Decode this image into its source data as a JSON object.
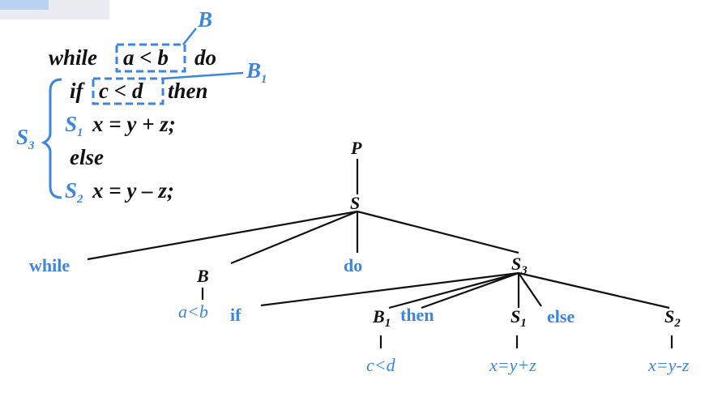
{
  "code": {
    "keyword_while": "while",
    "cond_outer": "a < b",
    "keyword_do": "do",
    "keyword_if": "if",
    "cond_inner": "c < d",
    "keyword_then": "then",
    "s1_label": "S",
    "s1_sub": "1",
    "s1_stmt": "x = y + z;",
    "keyword_else": "else",
    "s2_label": "S",
    "s2_sub": "2",
    "s2_stmt": "x = y – z;",
    "s3_label": "S",
    "s3_sub": "3",
    "b_label": "B",
    "b1_label": "B",
    "b1_sub": "1"
  },
  "tree": {
    "root": "P",
    "s": "S",
    "while": "while",
    "b": "B",
    "b_leaf": "a<b",
    "do": "do",
    "s3": "S",
    "s3_sub": "3",
    "if": "if",
    "b1": "B",
    "b1_sub": "1",
    "b1_leaf": "c<d",
    "then": "then",
    "s1": "S",
    "s1_sub": "1",
    "s1_leaf": "x=y+z",
    "else": "else",
    "s2": "S",
    "s2_sub": "2",
    "s2_leaf": "x=y-z"
  },
  "colors": {
    "accent": "#3d86e0",
    "ink": "#111111"
  }
}
